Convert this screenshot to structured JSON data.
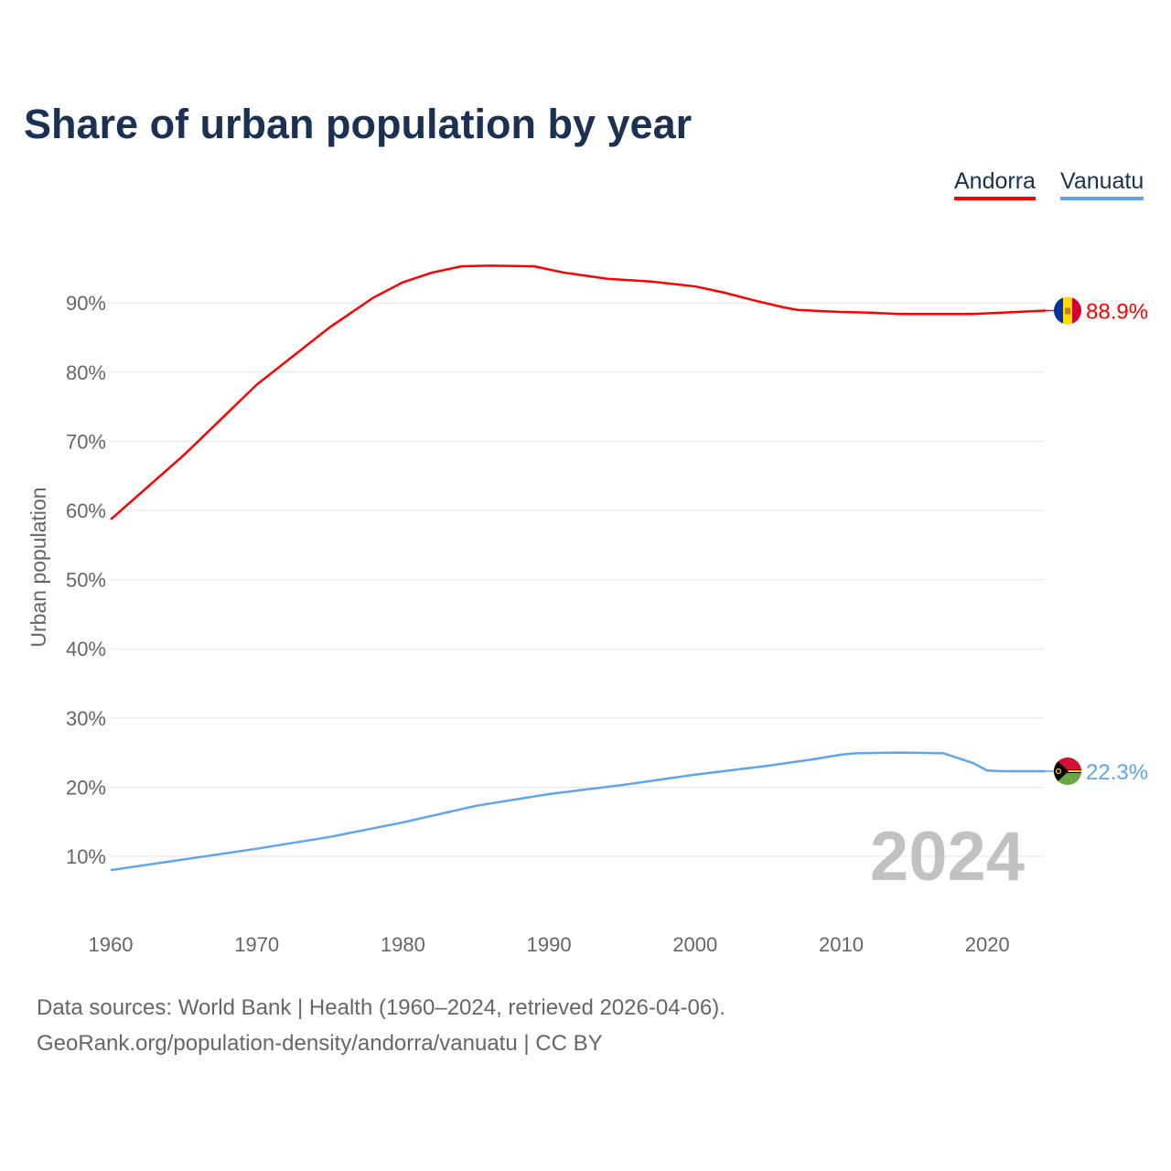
{
  "chart_data": {
    "type": "line",
    "title": "Share of urban population by year",
    "xlabel": "",
    "ylabel": "Urban population",
    "xlim": [
      1960,
      2024
    ],
    "ylim": [
      0,
      100
    ],
    "x_ticks": [
      "1960",
      "1970",
      "1980",
      "1990",
      "2000",
      "2010",
      "2020"
    ],
    "y_ticks": [
      "10%",
      "20%",
      "30%",
      "40%",
      "50%",
      "60%",
      "70%",
      "80%",
      "90%"
    ],
    "year_watermark": "2024",
    "legend_position": "top-right",
    "series": [
      {
        "name": "Andorra",
        "color": "#ff0000",
        "end_label": "88.9%",
        "x": [
          1960,
          1965,
          1970,
          1975,
          1978,
          1980,
          1982,
          1984,
          1986,
          1989,
          1991,
          1994,
          1997,
          2000,
          2002,
          2004,
          2006,
          2007,
          2010,
          2012,
          2014,
          2019,
          2022,
          2024
        ],
        "values": [
          58.7,
          68.0,
          78.2,
          86.5,
          90.8,
          93.0,
          94.4,
          95.3,
          95.4,
          95.3,
          94.4,
          93.5,
          93.1,
          92.4,
          91.5,
          90.4,
          89.4,
          89.0,
          88.7,
          88.6,
          88.4,
          88.4,
          88.7,
          88.9
        ]
      },
      {
        "name": "Vanuatu",
        "color": "#5fa5ec",
        "end_label": "22.3%",
        "x": [
          1960,
          1970,
          1975,
          1980,
          1985,
          1990,
          1995,
          2000,
          2005,
          2008,
          2010,
          2011,
          2014,
          2017,
          2018,
          2019,
          2020,
          2021,
          2024
        ],
        "values": [
          8.0,
          11.1,
          12.8,
          14.9,
          17.3,
          19.0,
          20.3,
          21.8,
          23.1,
          24.0,
          24.7,
          24.9,
          25.0,
          24.9,
          24.2,
          23.5,
          22.4,
          22.3,
          22.3
        ]
      }
    ]
  },
  "footer": {
    "line1": "Data sources: World Bank | Health (1960–2024, retrieved 2026-04-06).",
    "line2": "GeoRank.org/population-density/andorra/vanuatu | CC BY"
  }
}
